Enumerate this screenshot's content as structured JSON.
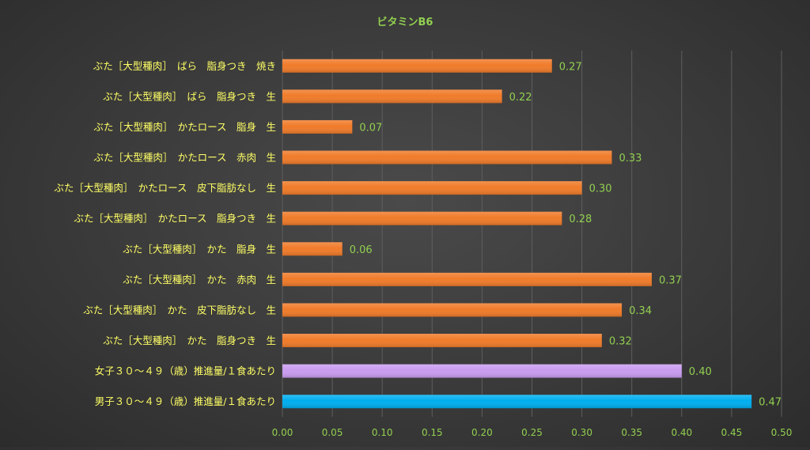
{
  "chart_data": {
    "type": "bar",
    "orientation": "horizontal",
    "title": "ビタミンB6",
    "xlabel": "",
    "ylabel": "",
    "xlim": [
      0,
      0.5
    ],
    "xticks": [
      "0.00",
      "0.05",
      "0.10",
      "0.15",
      "0.20",
      "0.25",
      "0.30",
      "0.35",
      "0.40",
      "0.45",
      "0.50"
    ],
    "grid": true,
    "legend": "none",
    "categories": [
      "ぶた［大型種肉］　ばら　脂身つき　焼き",
      "ぶた［大型種肉］　ばら　脂身つき　生",
      "ぶた［大型種肉］　かたロース　脂身　生",
      "ぶた［大型種肉］　かたロース　赤肉　生",
      "ぶた［大型種肉］　かたロース　皮下脂肪なし　生",
      "ぶた［大型種肉］　かたロース　脂身つき　生",
      "ぶた［大型種肉］　かた　脂身　生",
      "ぶた［大型種肉］　かた　赤肉　生",
      "ぶた［大型種肉］　かた　皮下脂肪なし　生",
      "ぶた［大型種肉］　かた　脂身つき　生",
      "女子３０～４９（歳）推進量/１食あたり",
      "男子３０～４９（歳）推進量/１食あたり"
    ],
    "values": [
      0.27,
      0.22,
      0.07,
      0.33,
      0.3,
      0.28,
      0.06,
      0.37,
      0.34,
      0.32,
      0.4,
      0.47
    ],
    "value_labels": [
      "0.27",
      "0.22",
      "0.07",
      "0.33",
      "0.30",
      "0.28",
      "0.06",
      "0.37",
      "0.34",
      "0.32",
      "0.40",
      "0.47"
    ],
    "bar_colors": [
      "#f07b2a",
      "#f07b2a",
      "#f07b2a",
      "#f07b2a",
      "#f07b2a",
      "#f07b2a",
      "#f07b2a",
      "#f07b2a",
      "#f07b2a",
      "#f07b2a",
      "#c99cf0",
      "#00aeef"
    ],
    "title_color": "#92d050",
    "category_label_color": "#ffff66",
    "tick_label_color": "#92d050",
    "value_label_color": "#92d050",
    "gridline_color": "#5e5e5e"
  }
}
